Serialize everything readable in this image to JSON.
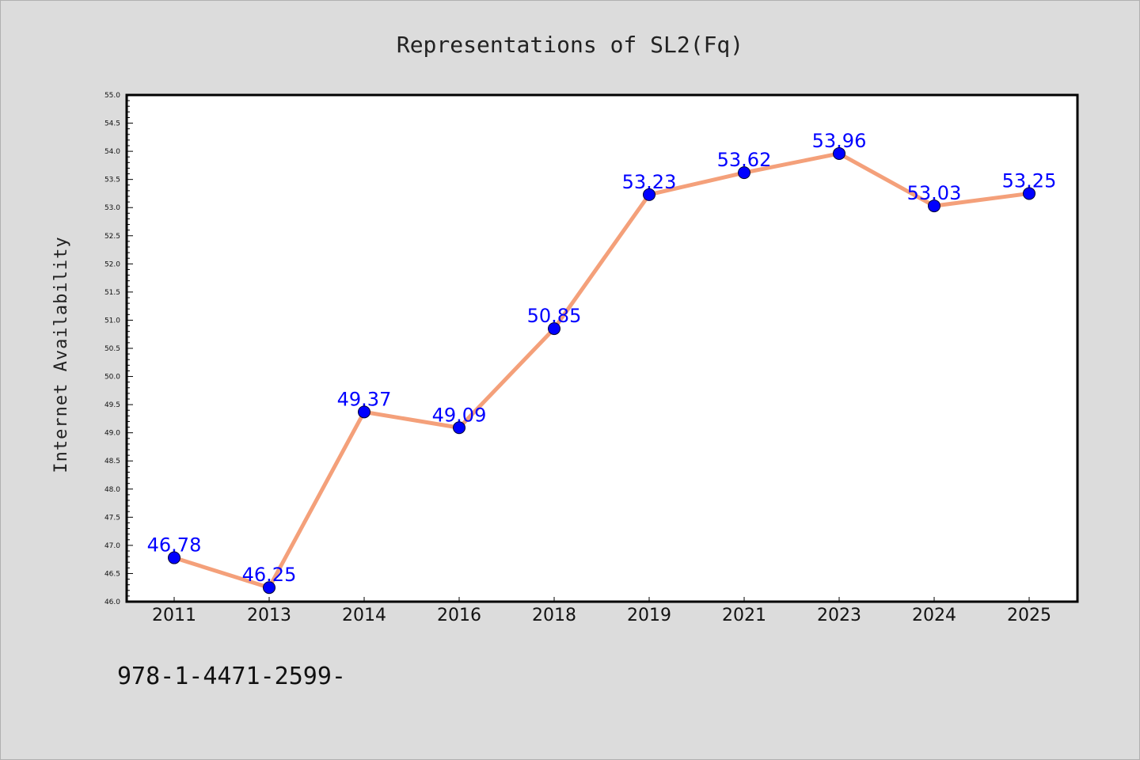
{
  "chart_data": {
    "type": "line",
    "title": "Representations of SL2(Fq)",
    "xlabel": "",
    "ylabel": "Internet Availability",
    "categories": [
      "2011",
      "2013",
      "2014",
      "2016",
      "2018",
      "2019",
      "2021",
      "2023",
      "2024",
      "2025"
    ],
    "series": [
      {
        "values": [
          46.78,
          46.25,
          49.37,
          49.09,
          50.85,
          53.23,
          53.62,
          53.96,
          53.03,
          53.25
        ],
        "value_labels": [
          "46.78",
          "46.25",
          "49.37",
          "49.09",
          "50.85",
          "53.23",
          "53.62",
          "53.96",
          "53.03",
          "53.25"
        ],
        "line_color": "#f4a07a",
        "marker_color": "#0000ff"
      }
    ],
    "ylim": [
      46.0,
      55.0
    ],
    "yticks": [
      "46.0",
      "46.5",
      "47.0",
      "47.5",
      "48.0",
      "48.5",
      "49.0",
      "49.5",
      "50.0",
      "50.5",
      "51.0",
      "51.5",
      "52.0",
      "52.5",
      "53.0",
      "53.5",
      "54.0",
      "54.5",
      "55.0"
    ],
    "grid": false,
    "legend": "none"
  },
  "footer": {
    "text": "978-1-4471-2599-"
  },
  "colors": {
    "background": "#dcdcdc",
    "plot_background": "#ffffff",
    "line": "#f4a07a",
    "marker": "#0000ff",
    "data_label": "#0000ff"
  }
}
